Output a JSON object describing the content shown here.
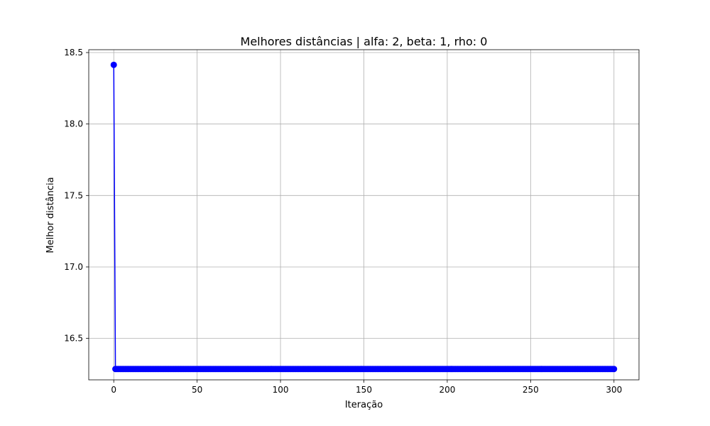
{
  "chart_data": {
    "type": "line",
    "title": "Melhores distâncias | alfa: 2, beta: 1, rho: 0",
    "xlabel": "Iteração",
    "ylabel": "Melhor distância",
    "xlim": [
      -15,
      315
    ],
    "ylim": [
      16.21,
      18.52
    ],
    "x_ticks": [
      0,
      50,
      100,
      150,
      200,
      250,
      300
    ],
    "x_tick_labels": [
      "0",
      "50",
      "100",
      "150",
      "200",
      "250",
      "300"
    ],
    "y_ticks": [
      16.5,
      17.0,
      17.5,
      18.0,
      18.5
    ],
    "y_tick_labels": [
      "16.5",
      "17.0",
      "17.5",
      "18.0",
      "18.5"
    ],
    "grid": true,
    "series": [
      {
        "color": "#0000ff",
        "marker": "circle",
        "initial": {
          "x": 0,
          "y": 18.414
        },
        "plateau": {
          "x_start": 1,
          "x_end": 300,
          "y": 16.286
        }
      }
    ]
  }
}
